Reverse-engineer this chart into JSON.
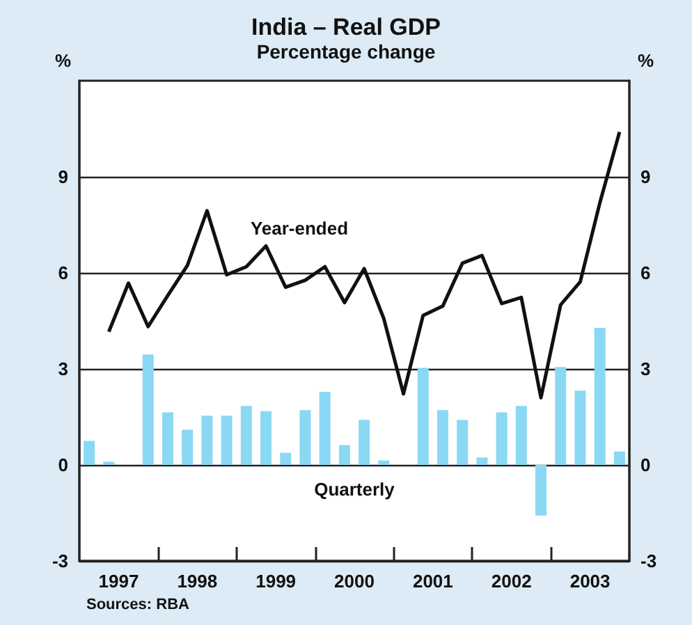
{
  "chart_data": {
    "type": "bar",
    "title": "India – Real GDP",
    "subtitle": "Percentage change",
    "ylabel": "%",
    "y2label": "%",
    "x": [
      1997.125,
      1997.375,
      1997.625,
      1997.875,
      1998.125,
      1998.375,
      1998.625,
      1998.875,
      1999.125,
      1999.375,
      1999.625,
      1999.875,
      2000.125,
      2000.375,
      2000.625,
      2000.875,
      2001.125,
      2001.375,
      2001.625,
      2001.875,
      2002.125,
      2002.375,
      2002.625,
      2002.875,
      2003.125,
      2003.375,
      2003.625,
      2003.875
    ],
    "xlim": [
      1997,
      2004
    ],
    "xticks": [
      {
        "value": 1997.5,
        "label": "1997"
      },
      {
        "value": 1998,
        "label": null
      },
      {
        "value": 1998.5,
        "label": "1998"
      },
      {
        "value": 1999,
        "label": null
      },
      {
        "value": 1999.5,
        "label": "1999"
      },
      {
        "value": 2000,
        "label": null
      },
      {
        "value": 2000.5,
        "label": "2000"
      },
      {
        "value": 2001,
        "label": null
      },
      {
        "value": 2001.5,
        "label": "2001"
      },
      {
        "value": 2002,
        "label": null
      },
      {
        "value": 2002.5,
        "label": "2002"
      },
      {
        "value": 2003,
        "label": null
      },
      {
        "value": 2003.5,
        "label": "2003"
      }
    ],
    "series": [
      {
        "name": "Quarterly",
        "color": "#8ad8f4",
        "values": [
          0.75,
          0.1,
          0,
          3.45,
          1.64,
          1.1,
          1.54,
          1.54,
          1.84,
          1.68,
          0.38,
          1.71,
          2.28,
          0.62,
          1.41,
          0.14,
          0,
          3.03,
          1.71,
          1.41,
          0.23,
          1.64,
          1.84,
          -1.58,
          3.06,
          2.32,
          4.28,
          0.42
        ]
      },
      {
        "name": "Year-ended",
        "type": "line",
        "color": "#111111",
        "values": [
          null,
          4.16,
          5.68,
          4.32,
          5.29,
          6.23,
          7.94,
          5.94,
          6.19,
          6.84,
          5.55,
          5.77,
          6.19,
          5.07,
          6.13,
          4.57,
          2.22,
          4.67,
          4.96,
          6.3,
          6.54,
          5.04,
          5.23,
          2.1,
          5.0,
          5.72,
          8.19,
          10.4
        ]
      }
    ],
    "ylim": [
      -3,
      12
    ],
    "yticks": [
      -3,
      0,
      3,
      6,
      9
    ],
    "y2lim": [
      -3,
      12
    ],
    "y2ticks": [
      -3,
      0,
      3,
      6,
      9
    ],
    "grid": "y",
    "legend": false,
    "marker": "none",
    "line_style": "solid",
    "annotations": [
      "Sources: RBA"
    ]
  }
}
